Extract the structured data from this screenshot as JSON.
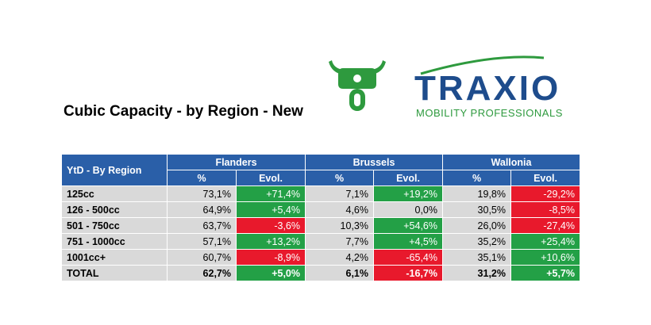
{
  "title": "Cubic Capacity - by Region - New",
  "logo": {
    "brand": "TRAXIO",
    "tagline": "MOBILITY PROFESSIONALS",
    "brand_color": "#1e4c8c",
    "tag_color": "#2e9a3e"
  },
  "icon": {
    "name": "motorcycle-icon",
    "color": "#2e9a3e"
  },
  "table": {
    "corner": "YtD - By Region",
    "regions": [
      "Flanders",
      "Brussels",
      "Wallonia"
    ],
    "sub_pct": "%",
    "sub_evol": "Evol.",
    "rows": [
      {
        "label": "125cc",
        "cells": [
          [
            "73,1%",
            "+71,4%",
            "pos"
          ],
          [
            "7,1%",
            "+19,2%",
            "pos"
          ],
          [
            "19,8%",
            "-29,2%",
            "neg"
          ]
        ]
      },
      {
        "label": "126 - 500cc",
        "cells": [
          [
            "64,9%",
            "+5,4%",
            "pos"
          ],
          [
            "4,6%",
            "0,0%",
            "neu"
          ],
          [
            "30,5%",
            "-8,5%",
            "neg"
          ]
        ]
      },
      {
        "label": "501 - 750cc",
        "cells": [
          [
            "63,7%",
            "-3,6%",
            "neg"
          ],
          [
            "10,3%",
            "+54,6%",
            "pos"
          ],
          [
            "26,0%",
            "-27,4%",
            "neg"
          ]
        ]
      },
      {
        "label": "751 - 1000cc",
        "cells": [
          [
            "57,1%",
            "+13,2%",
            "pos"
          ],
          [
            "7,7%",
            "+4,5%",
            "pos"
          ],
          [
            "35,2%",
            "+25,4%",
            "pos"
          ]
        ]
      },
      {
        "label": "1001cc+",
        "cells": [
          [
            "60,7%",
            "-8,9%",
            "neg"
          ],
          [
            "4,2%",
            "-65,4%",
            "neg"
          ],
          [
            "35,1%",
            "+10,6%",
            "pos"
          ]
        ]
      }
    ],
    "total": {
      "label": "TOTAL",
      "cells": [
        [
          "62,7%",
          "+5,0%",
          "pos"
        ],
        [
          "6,1%",
          "-16,7%",
          "neg"
        ],
        [
          "31,2%",
          "+5,7%",
          "pos"
        ]
      ]
    }
  }
}
